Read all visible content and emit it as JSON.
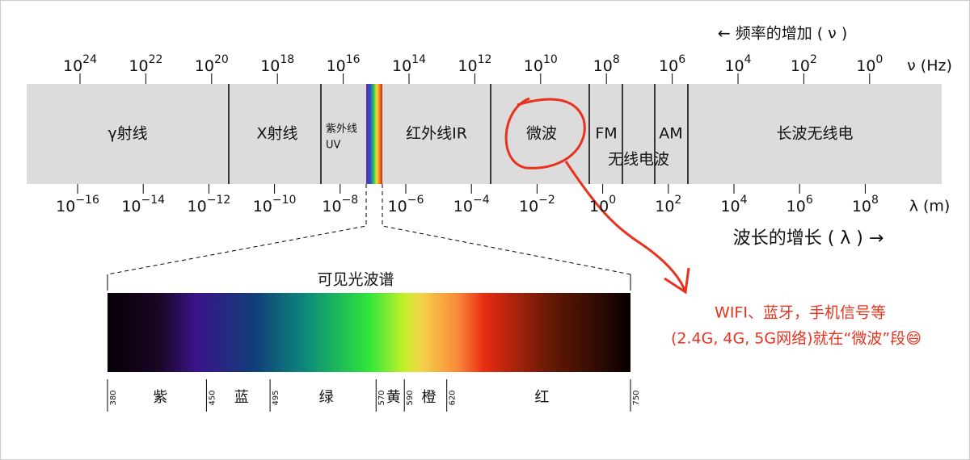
{
  "frequency_axis": {
    "title": "← 频率的增加 ( ν )",
    "unit": "ν (Hz)",
    "ticks": [
      {
        "base": "10",
        "exp": "24"
      },
      {
        "base": "10",
        "exp": "22"
      },
      {
        "base": "10",
        "exp": "20"
      },
      {
        "base": "10",
        "exp": "18"
      },
      {
        "base": "10",
        "exp": "16"
      },
      {
        "base": "10",
        "exp": "14"
      },
      {
        "base": "10",
        "exp": "12"
      },
      {
        "base": "10",
        "exp": "10"
      },
      {
        "base": "10",
        "exp": "8"
      },
      {
        "base": "10",
        "exp": "6"
      },
      {
        "base": "10",
        "exp": "4"
      },
      {
        "base": "10",
        "exp": "2"
      },
      {
        "base": "10",
        "exp": "0"
      }
    ]
  },
  "wavelength_axis": {
    "title": "波长的增长 ( λ )  →",
    "unit": "λ (m)",
    "ticks": [
      {
        "base": "10",
        "exp": "−16"
      },
      {
        "base": "10",
        "exp": "−14"
      },
      {
        "base": "10",
        "exp": "−12"
      },
      {
        "base": "10",
        "exp": "−10"
      },
      {
        "base": "10",
        "exp": "−8"
      },
      {
        "base": "10",
        "exp": "−6"
      },
      {
        "base": "10",
        "exp": "−4"
      },
      {
        "base": "10",
        "exp": "−2"
      },
      {
        "base": "10",
        "exp": "0"
      },
      {
        "base": "10",
        "exp": "2"
      },
      {
        "base": "10",
        "exp": "4"
      },
      {
        "base": "10",
        "exp": "6"
      },
      {
        "base": "10",
        "exp": "8"
      }
    ]
  },
  "regions": [
    "γ射线",
    "X射线",
    "紫外线",
    "UV",
    "红外线IR",
    "微波",
    "FM",
    "AM",
    "无线电波",
    "长波无线电"
  ],
  "visible_spectrum": {
    "title": "可见光波谱",
    "ticks": [
      380,
      450,
      495,
      570,
      590,
      620,
      750
    ],
    "colors": [
      "紫",
      "蓝",
      "绿",
      "黄",
      "橙",
      "红"
    ]
  },
  "annotation": [
    "WIFI、蓝牙，手机信号等",
    "(2.4G, 4G, 5G网络)就在“微波”段😄"
  ]
}
